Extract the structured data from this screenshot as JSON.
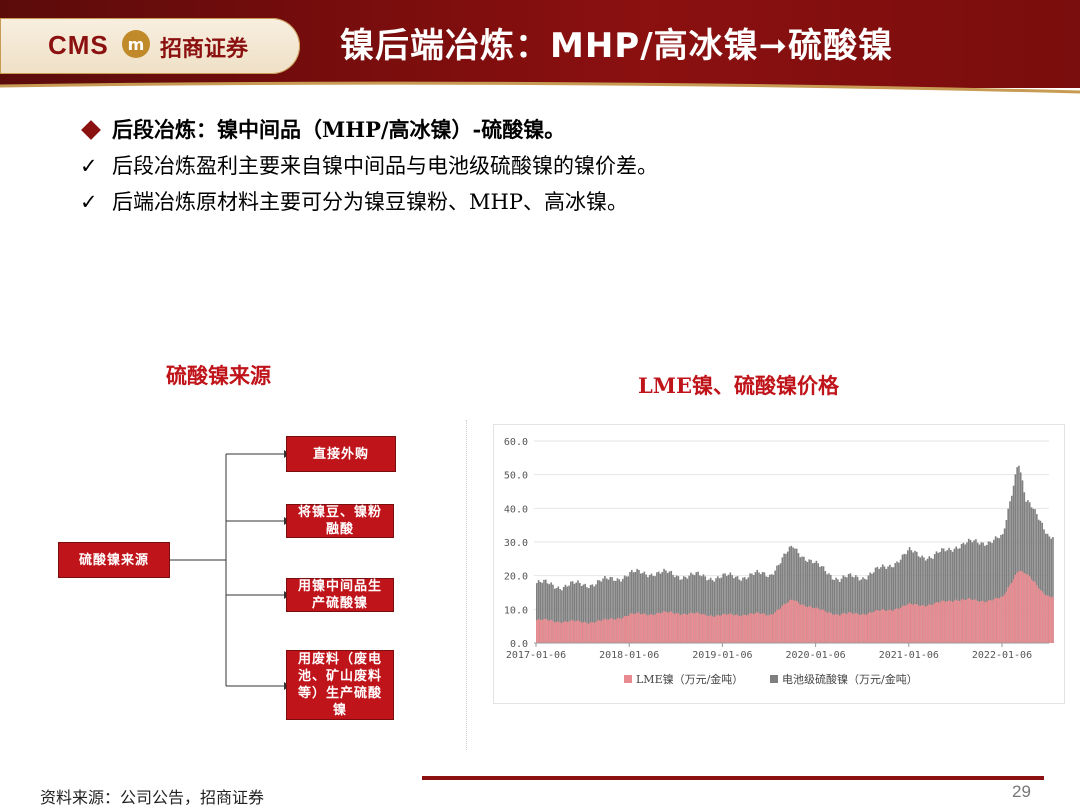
{
  "header": {
    "logo_text": "CMS",
    "logo_badge": "m",
    "logo_cn": "招商证券",
    "title": "镍后端冶炼：MHP/高冰镍➞硫酸镍"
  },
  "bullets": [
    {
      "icon": "diamond-bullet-icon",
      "text": "后段冶炼：镍中间品（MHP/高冰镍）-硫酸镍。"
    },
    {
      "icon": "check-icon",
      "text": "后段冶炼盈利主要来自镍中间品与电池级硫酸镍的镍价差。"
    },
    {
      "icon": "check-icon",
      "text": "后端冶炼原材料主要可分为镍豆镍粉、MHP、高冰镍。"
    }
  ],
  "flow": {
    "title": "硫酸镍来源",
    "root": "硫酸镍来源",
    "branches": [
      "直接外购",
      "将镍豆、镍粉融酸",
      "用镍中间品生产硫酸镍",
      "用废料（废电池、矿山废料等）生产硫酸镍"
    ]
  },
  "colors": {
    "brand_red": "#8b1010",
    "accent_red": "#c0141b",
    "lme_series": "#e88a8f",
    "sulfate_series": "#7f7f7f"
  },
  "chart_data": {
    "type": "area",
    "title": "LME镍、硫酸镍价格",
    "xlabel": "",
    "ylabel": "",
    "ylim": [
      0,
      60
    ],
    "yticks": [
      "60.0",
      "50.0",
      "40.0",
      "30.0",
      "20.0",
      "10.0",
      "0.0"
    ],
    "xticks": [
      "2017-01-06",
      "2018-01-06",
      "2019-01-06",
      "2020-01-06",
      "2021-01-06",
      "2022-01-06"
    ],
    "x": [
      "2017-01",
      "2017-04",
      "2017-07",
      "2017-10",
      "2018-01",
      "2018-04",
      "2018-07",
      "2018-10",
      "2019-01",
      "2019-04",
      "2019-07",
      "2019-10",
      "2020-01",
      "2020-04",
      "2020-07",
      "2020-10",
      "2021-01",
      "2021-04",
      "2021-07",
      "2021-10",
      "2022-01",
      "2022-03",
      "2022-04",
      "2022-06",
      "2022-07"
    ],
    "series": [
      {
        "name": "LME镍（万元/金吨）",
        "values": [
          6.8,
          6.5,
          6.2,
          6.7,
          8.4,
          8.8,
          9.0,
          8.5,
          8.2,
          8.6,
          8.5,
          12.8,
          10.0,
          8.5,
          8.8,
          9.7,
          11.3,
          11.5,
          13.0,
          12.5,
          13.3,
          22.0,
          20.5,
          15.5,
          14.0
        ]
      },
      {
        "name": "电池级硫酸镍（万元/金吨）",
        "values": [
          17.8,
          17.0,
          17.4,
          18.5,
          20.5,
          21.0,
          20.2,
          19.8,
          19.5,
          20.0,
          20.5,
          28.5,
          23.0,
          19.0,
          19.8,
          22.5,
          27.0,
          25.5,
          29.0,
          30.0,
          31.0,
          55.0,
          42.0,
          36.0,
          32.0
        ]
      }
    ],
    "legend": "bottom",
    "grid": true
  },
  "footer": {
    "source": "资料来源：公司公告，招商证券",
    "page_number": "29"
  }
}
